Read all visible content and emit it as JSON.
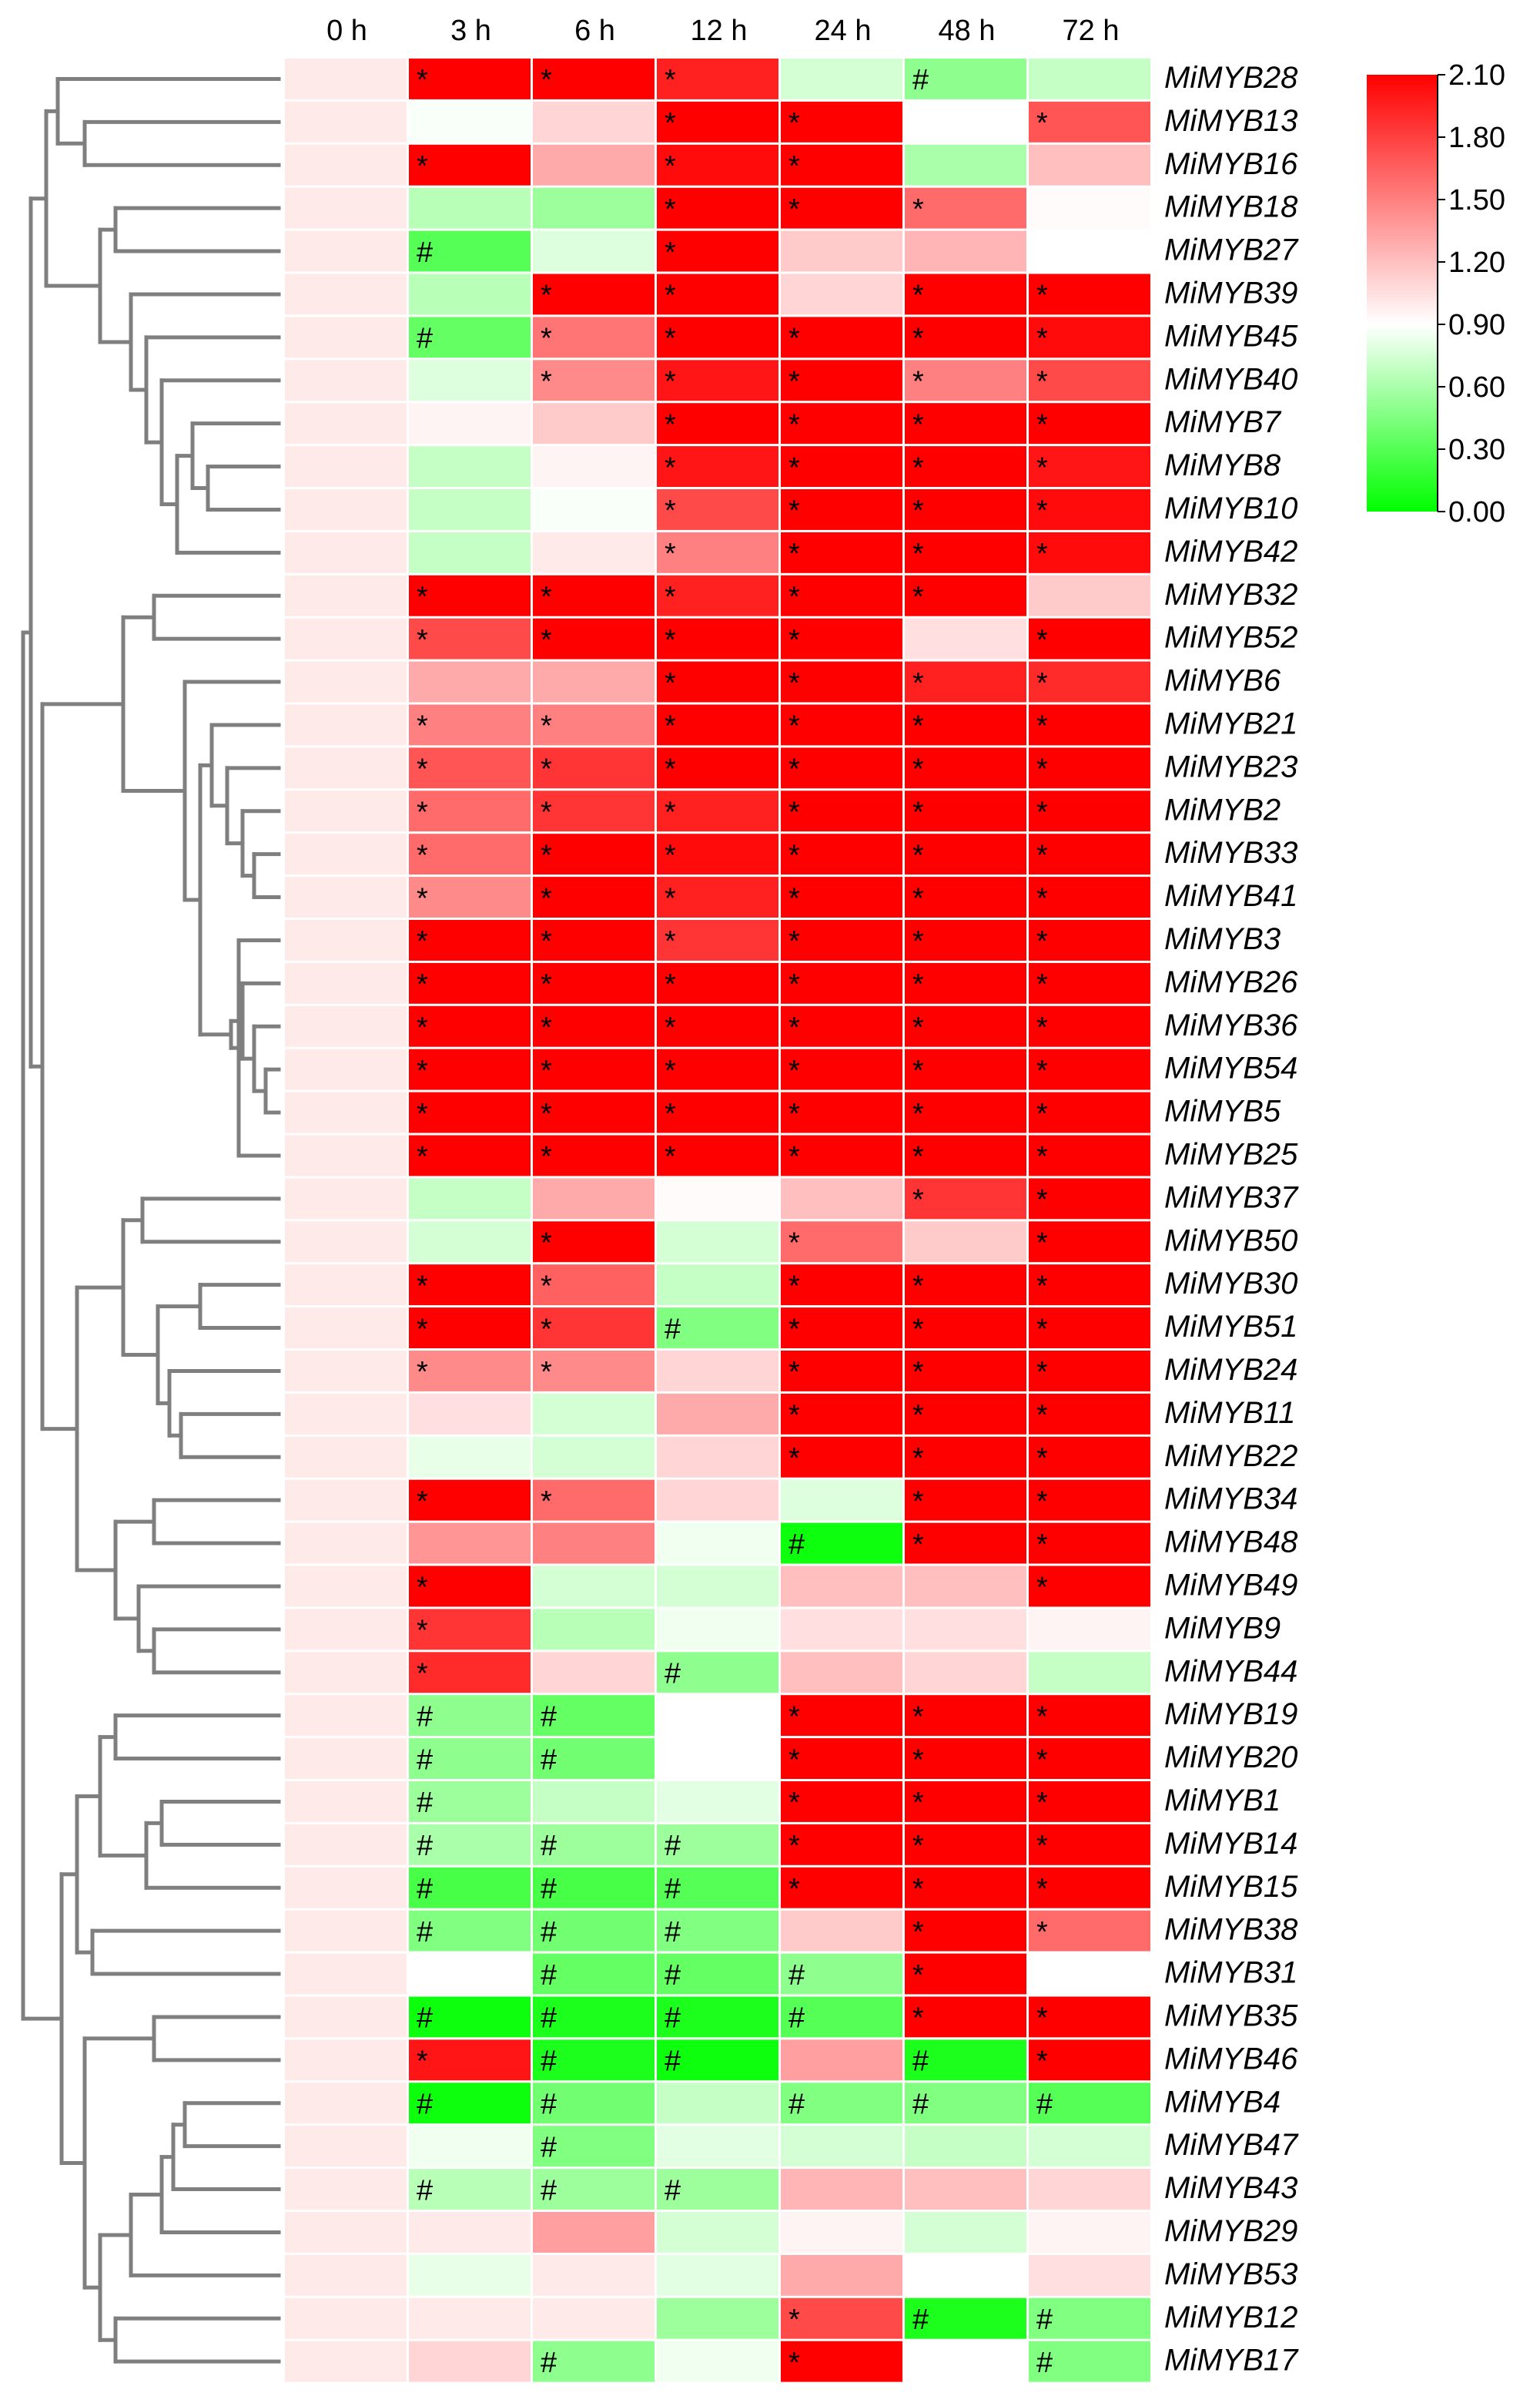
{
  "chart_data": {
    "type": "heatmap",
    "title": "",
    "columns": [
      "0 h",
      "3 h",
      "6 h",
      "12 h",
      "24 h",
      "48 h",
      "72 h"
    ],
    "color_scale": {
      "min": 0.0,
      "mid": 0.9,
      "max": 2.1,
      "min_color": "#00ff00",
      "mid_color": "#ffffff",
      "max_color": "#ff0000",
      "ticks": [
        "2.10",
        "1.80",
        "1.50",
        "1.20",
        "0.90",
        "0.60",
        "0.30",
        "0.00"
      ]
    },
    "dendrogram": "rows clustered, drawn on left",
    "rows": [
      {
        "gene": "MiMYB28",
        "values": [
          1.0,
          2.1,
          2.1,
          1.95,
          0.75,
          0.5,
          0.7
        ],
        "marks": [
          "",
          "*",
          "*",
          "*",
          "",
          "#",
          ""
        ]
      },
      {
        "gene": "MiMYB13",
        "values": [
          1.0,
          0.88,
          1.1,
          2.1,
          2.1,
          0.9,
          1.7
        ],
        "marks": [
          "",
          "",
          "",
          "*",
          "*",
          "",
          "*"
        ]
      },
      {
        "gene": "MiMYB16",
        "values": [
          1.0,
          2.1,
          1.3,
          2.05,
          2.1,
          0.6,
          1.2
        ],
        "marks": [
          "",
          "*",
          "",
          "*",
          "*",
          "",
          ""
        ]
      },
      {
        "gene": "MiMYB18",
        "values": [
          1.0,
          0.65,
          0.55,
          2.1,
          2.1,
          1.6,
          0.92
        ],
        "marks": [
          "",
          "",
          "",
          "*",
          "*",
          "*",
          ""
        ]
      },
      {
        "gene": "MiMYB27",
        "values": [
          1.0,
          0.3,
          0.78,
          2.1,
          1.15,
          1.25,
          0.9
        ],
        "marks": [
          "",
          "#",
          "",
          "*",
          "",
          "",
          ""
        ]
      },
      {
        "gene": "MiMYB39",
        "values": [
          1.0,
          0.65,
          2.1,
          2.1,
          1.1,
          2.1,
          2.1
        ],
        "marks": [
          "",
          "",
          "*",
          "*",
          "",
          "*",
          "*"
        ]
      },
      {
        "gene": "MiMYB45",
        "values": [
          1.0,
          0.35,
          1.55,
          2.1,
          2.1,
          2.1,
          2.05
        ],
        "marks": [
          "",
          "#",
          "*",
          "*",
          "*",
          "*",
          "*"
        ]
      },
      {
        "gene": "MiMYB40",
        "values": [
          1.0,
          0.78,
          1.45,
          2.0,
          2.1,
          1.5,
          1.75
        ],
        "marks": [
          "",
          "",
          "*",
          "*",
          "*",
          "*",
          "*"
        ]
      },
      {
        "gene": "MiMYB7",
        "values": [
          1.0,
          0.95,
          1.15,
          2.1,
          2.1,
          2.1,
          2.1
        ],
        "marks": [
          "",
          "",
          "",
          "*",
          "*",
          "*",
          "*"
        ]
      },
      {
        "gene": "MiMYB8",
        "values": [
          1.0,
          0.7,
          0.95,
          2.0,
          2.1,
          2.1,
          2.0
        ],
        "marks": [
          "",
          "",
          "",
          "*",
          "*",
          "*",
          "*"
        ]
      },
      {
        "gene": "MiMYB10",
        "values": [
          1.0,
          0.7,
          0.88,
          1.75,
          2.1,
          2.1,
          2.05
        ],
        "marks": [
          "",
          "",
          "",
          "*",
          "*",
          "*",
          "*"
        ]
      },
      {
        "gene": "MiMYB42",
        "values": [
          1.0,
          0.7,
          1.0,
          1.5,
          2.1,
          2.1,
          2.05
        ],
        "marks": [
          "",
          "",
          "",
          "*",
          "*",
          "*",
          "*"
        ]
      },
      {
        "gene": "MiMYB32",
        "values": [
          1.0,
          2.1,
          2.1,
          1.95,
          2.1,
          2.1,
          1.15
        ],
        "marks": [
          "",
          "*",
          "*",
          "*",
          "*",
          "*",
          ""
        ]
      },
      {
        "gene": "MiMYB52",
        "values": [
          1.0,
          1.75,
          2.1,
          2.1,
          2.1,
          1.05,
          2.1
        ],
        "marks": [
          "",
          "*",
          "*",
          "*",
          "*",
          "",
          "*"
        ]
      },
      {
        "gene": "MiMYB6",
        "values": [
          1.0,
          1.3,
          1.3,
          2.1,
          2.1,
          1.95,
          1.9
        ],
        "marks": [
          "",
          "",
          "",
          "*",
          "*",
          "*",
          "*"
        ]
      },
      {
        "gene": "MiMYB21",
        "values": [
          1.0,
          1.5,
          1.5,
          2.1,
          2.1,
          2.1,
          2.1
        ],
        "marks": [
          "",
          "*",
          "*",
          "*",
          "*",
          "*",
          "*"
        ]
      },
      {
        "gene": "MiMYB23",
        "values": [
          1.0,
          1.7,
          1.85,
          2.1,
          2.1,
          2.1,
          2.1
        ],
        "marks": [
          "",
          "*",
          "*",
          "*",
          "*",
          "*",
          "*"
        ]
      },
      {
        "gene": "MiMYB2",
        "values": [
          1.0,
          1.6,
          1.85,
          1.95,
          2.1,
          2.1,
          2.1
        ],
        "marks": [
          "",
          "*",
          "*",
          "*",
          "*",
          "*",
          "*"
        ]
      },
      {
        "gene": "MiMYB33",
        "values": [
          1.0,
          1.6,
          2.1,
          2.05,
          2.1,
          2.1,
          2.1
        ],
        "marks": [
          "",
          "*",
          "*",
          "*",
          "*",
          "*",
          "*"
        ]
      },
      {
        "gene": "MiMYB41",
        "values": [
          1.0,
          1.45,
          2.1,
          1.95,
          2.1,
          2.1,
          2.1
        ],
        "marks": [
          "",
          "*",
          "*",
          "*",
          "*",
          "*",
          "*"
        ]
      },
      {
        "gene": "MiMYB3",
        "values": [
          1.0,
          2.1,
          2.1,
          1.85,
          2.1,
          2.1,
          2.1
        ],
        "marks": [
          "",
          "*",
          "*",
          "*",
          "*",
          "*",
          "*"
        ]
      },
      {
        "gene": "MiMYB26",
        "values": [
          1.0,
          2.1,
          2.1,
          2.1,
          2.1,
          2.1,
          2.1
        ],
        "marks": [
          "",
          "*",
          "*",
          "*",
          "*",
          "*",
          "*"
        ]
      },
      {
        "gene": "MiMYB36",
        "values": [
          1.0,
          2.1,
          2.1,
          2.1,
          2.1,
          2.1,
          2.1
        ],
        "marks": [
          "",
          "*",
          "*",
          "*",
          "*",
          "*",
          "*"
        ]
      },
      {
        "gene": "MiMYB54",
        "values": [
          1.0,
          2.1,
          2.1,
          2.1,
          2.1,
          2.1,
          2.1
        ],
        "marks": [
          "",
          "*",
          "*",
          "*",
          "*",
          "*",
          "*"
        ]
      },
      {
        "gene": "MiMYB5",
        "values": [
          1.0,
          2.1,
          2.1,
          2.1,
          2.1,
          2.1,
          2.1
        ],
        "marks": [
          "",
          "*",
          "*",
          "*",
          "*",
          "*",
          "*"
        ]
      },
      {
        "gene": "MiMYB25",
        "values": [
          1.0,
          2.1,
          2.1,
          2.1,
          2.1,
          2.1,
          2.1
        ],
        "marks": [
          "",
          "*",
          "*",
          "*",
          "*",
          "*",
          "*"
        ]
      },
      {
        "gene": "MiMYB37",
        "values": [
          1.0,
          0.7,
          1.3,
          0.92,
          1.2,
          1.85,
          2.1
        ],
        "marks": [
          "",
          "",
          "",
          "",
          "",
          "*",
          "*"
        ]
      },
      {
        "gene": "MiMYB50",
        "values": [
          1.0,
          0.75,
          2.1,
          0.75,
          1.6,
          1.15,
          2.1
        ],
        "marks": [
          "",
          "",
          "*",
          "",
          "*",
          "",
          "*"
        ]
      },
      {
        "gene": "MiMYB30",
        "values": [
          1.0,
          2.1,
          1.65,
          0.7,
          2.1,
          2.1,
          2.1
        ],
        "marks": [
          "",
          "*",
          "*",
          "",
          "*",
          "*",
          "*"
        ]
      },
      {
        "gene": "MiMYB51",
        "values": [
          1.0,
          2.1,
          1.85,
          0.45,
          2.1,
          2.1,
          2.1
        ],
        "marks": [
          "",
          "*",
          "*",
          "#",
          "*",
          "*",
          "*"
        ]
      },
      {
        "gene": "MiMYB24",
        "values": [
          1.0,
          1.45,
          1.45,
          1.1,
          2.1,
          2.1,
          2.1
        ],
        "marks": [
          "",
          "*",
          "*",
          "",
          "*",
          "*",
          "*"
        ]
      },
      {
        "gene": "MiMYB11",
        "values": [
          1.0,
          1.05,
          0.75,
          1.3,
          2.1,
          2.1,
          2.1
        ],
        "marks": [
          "",
          "",
          "",
          "",
          "*",
          "*",
          "*"
        ]
      },
      {
        "gene": "MiMYB22",
        "values": [
          1.0,
          0.82,
          0.75,
          1.1,
          2.1,
          2.1,
          2.1
        ],
        "marks": [
          "",
          "",
          "",
          "",
          "*",
          "*",
          "*"
        ]
      },
      {
        "gene": "MiMYB34",
        "values": [
          1.0,
          2.1,
          1.6,
          1.1,
          0.78,
          2.1,
          2.1
        ],
        "marks": [
          "",
          "*",
          "*",
          "",
          "",
          "*",
          "*"
        ]
      },
      {
        "gene": "MiMYB48",
        "values": [
          1.0,
          1.4,
          1.5,
          0.85,
          0.05,
          2.1,
          2.1
        ],
        "marks": [
          "",
          "",
          "",
          "",
          "#",
          "*",
          "*"
        ]
      },
      {
        "gene": "MiMYB49",
        "values": [
          1.0,
          2.1,
          0.75,
          0.75,
          1.2,
          1.2,
          2.1
        ],
        "marks": [
          "",
          "*",
          "",
          "",
          "",
          "",
          "*"
        ]
      },
      {
        "gene": "MiMYB9",
        "values": [
          1.0,
          1.85,
          0.65,
          0.85,
          1.05,
          1.05,
          0.95
        ],
        "marks": [
          "",
          "*",
          "",
          "",
          "",
          "",
          ""
        ]
      },
      {
        "gene": "MiMYB44",
        "values": [
          1.0,
          1.9,
          1.1,
          0.5,
          1.2,
          1.1,
          0.7
        ],
        "marks": [
          "",
          "*",
          "",
          "#",
          "",
          "",
          ""
        ]
      },
      {
        "gene": "MiMYB19",
        "values": [
          1.0,
          0.5,
          0.35,
          0.9,
          2.1,
          2.1,
          2.1
        ],
        "marks": [
          "",
          "#",
          "#",
          "",
          "*",
          "*",
          "*"
        ]
      },
      {
        "gene": "MiMYB20",
        "values": [
          1.0,
          0.5,
          0.4,
          0.9,
          2.1,
          2.1,
          2.1
        ],
        "marks": [
          "",
          "#",
          "#",
          "",
          "*",
          "*",
          "*"
        ]
      },
      {
        "gene": "MiMYB1",
        "values": [
          1.0,
          0.55,
          0.7,
          0.8,
          2.1,
          2.1,
          2.1
        ],
        "marks": [
          "",
          "#",
          "",
          "",
          "*",
          "*",
          "*"
        ]
      },
      {
        "gene": "MiMYB14",
        "values": [
          1.0,
          0.6,
          0.55,
          0.55,
          2.1,
          2.1,
          2.1
        ],
        "marks": [
          "",
          "#",
          "#",
          "#",
          "*",
          "*",
          "*"
        ]
      },
      {
        "gene": "MiMYB15",
        "values": [
          1.0,
          0.25,
          0.25,
          0.3,
          2.1,
          2.1,
          2.1
        ],
        "marks": [
          "",
          "#",
          "#",
          "#",
          "*",
          "*",
          "*"
        ]
      },
      {
        "gene": "MiMYB38",
        "values": [
          1.0,
          0.45,
          0.4,
          0.45,
          1.15,
          2.1,
          1.6
        ],
        "marks": [
          "",
          "#",
          "#",
          "#",
          "",
          "*",
          "*"
        ]
      },
      {
        "gene": "MiMYB31",
        "values": [
          1.0,
          0.9,
          0.35,
          0.35,
          0.5,
          2.1,
          0.9
        ],
        "marks": [
          "",
          "",
          "#",
          "#",
          "#",
          "*",
          ""
        ]
      },
      {
        "gene": "MiMYB35",
        "values": [
          1.0,
          0.05,
          0.1,
          0.1,
          0.3,
          2.1,
          2.1
        ],
        "marks": [
          "",
          "#",
          "#",
          "#",
          "#",
          "*",
          "*"
        ]
      },
      {
        "gene": "MiMYB46",
        "values": [
          1.0,
          2.0,
          0.1,
          0.05,
          1.35,
          0.1,
          2.1
        ],
        "marks": [
          "",
          "*",
          "#",
          "#",
          "",
          "#",
          "*"
        ]
      },
      {
        "gene": "MiMYB4",
        "values": [
          1.0,
          0.05,
          0.4,
          0.7,
          0.45,
          0.45,
          0.3
        ],
        "marks": [
          "",
          "#",
          "#",
          "",
          "#",
          "#",
          "#"
        ]
      },
      {
        "gene": "MiMYB47",
        "values": [
          1.0,
          0.85,
          0.45,
          0.8,
          0.75,
          0.7,
          0.75
        ],
        "marks": [
          "",
          "",
          "#",
          "",
          "",
          "",
          ""
        ]
      },
      {
        "gene": "MiMYB43",
        "values": [
          1.0,
          0.65,
          0.55,
          0.55,
          1.25,
          1.2,
          1.1
        ],
        "marks": [
          "",
          "#",
          "#",
          "#",
          "",
          "",
          ""
        ]
      },
      {
        "gene": "MiMYB29",
        "values": [
          1.0,
          1.0,
          1.35,
          0.75,
          0.95,
          0.75,
          0.95
        ],
        "marks": [
          "",
          "",
          "",
          "",
          "",
          "",
          ""
        ]
      },
      {
        "gene": "MiMYB53",
        "values": [
          1.0,
          0.82,
          1.0,
          0.8,
          1.3,
          0.9,
          1.05
        ],
        "marks": [
          "",
          "",
          "",
          "",
          "",
          "",
          ""
        ]
      },
      {
        "gene": "MiMYB12",
        "values": [
          1.0,
          1.0,
          1.0,
          0.55,
          1.75,
          0.1,
          0.45
        ],
        "marks": [
          "",
          "",
          "",
          "",
          "*",
          "#",
          "#"
        ]
      },
      {
        "gene": "MiMYB17",
        "values": [
          1.0,
          1.1,
          0.5,
          0.85,
          2.1,
          0.9,
          0.45
        ],
        "marks": [
          "",
          "",
          "#",
          "",
          "*",
          "",
          "#"
        ]
      }
    ]
  }
}
